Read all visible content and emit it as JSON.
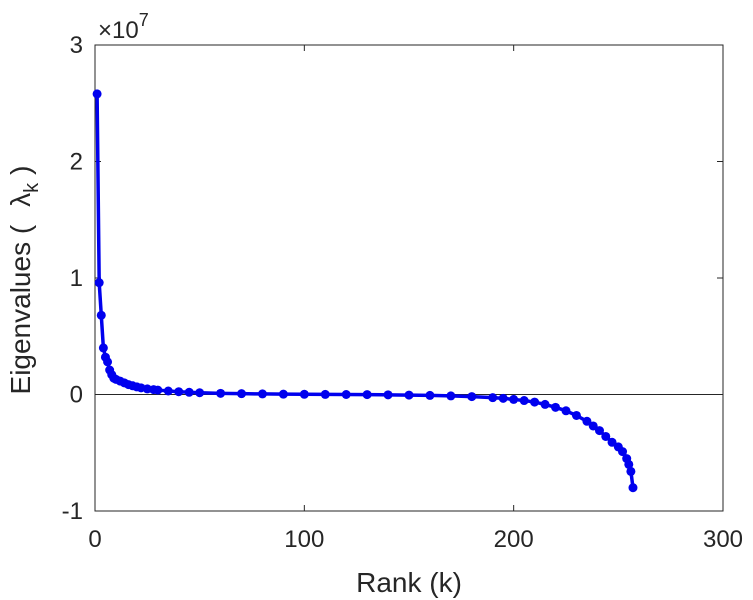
{
  "chart_data": {
    "type": "line",
    "xlabel": "Rank (k)",
    "ylabel": {
      "prefix": "Eigenvalues (",
      "symbol": "λ",
      "subscript": "k",
      "suffix": ")"
    },
    "y_exponent": {
      "base": "×10",
      "power": "7"
    },
    "xlim": [
      0,
      300
    ],
    "ylim": [
      -1,
      3
    ],
    "xticks": [
      0,
      100,
      200,
      300
    ],
    "yticks": [
      -1,
      0,
      1,
      2,
      3
    ],
    "grid": false,
    "zero_line": true,
    "series_color": "#0000ee",
    "series": [
      {
        "x": [
          1,
          2,
          3,
          4,
          5,
          6,
          7,
          8,
          9,
          10,
          12,
          14,
          16,
          18,
          20,
          22,
          25,
          28,
          30,
          35,
          40,
          45,
          50,
          60,
          70,
          80,
          90,
          100,
          110,
          120,
          130,
          140,
          150,
          160,
          170,
          180,
          190,
          195,
          200,
          205,
          210,
          215,
          220,
          225,
          230,
          235,
          238,
          241,
          244,
          247,
          250,
          252,
          254,
          255,
          256,
          257
        ],
        "values": [
          2.58,
          0.96,
          0.68,
          0.4,
          0.32,
          0.28,
          0.21,
          0.17,
          0.14,
          0.13,
          0.115,
          0.1,
          0.085,
          0.075,
          0.065,
          0.057,
          0.048,
          0.042,
          0.038,
          0.03,
          0.024,
          0.019,
          0.015,
          0.01,
          0.007,
          0.005,
          0.003,
          0.002,
          0.001,
          0.0,
          -0.001,
          -0.003,
          -0.005,
          -0.008,
          -0.012,
          -0.018,
          -0.027,
          -0.033,
          -0.042,
          -0.052,
          -0.065,
          -0.085,
          -0.11,
          -0.14,
          -0.18,
          -0.23,
          -0.27,
          -0.31,
          -0.36,
          -0.41,
          -0.45,
          -0.49,
          -0.55,
          -0.6,
          -0.66,
          -0.8
        ]
      }
    ]
  }
}
